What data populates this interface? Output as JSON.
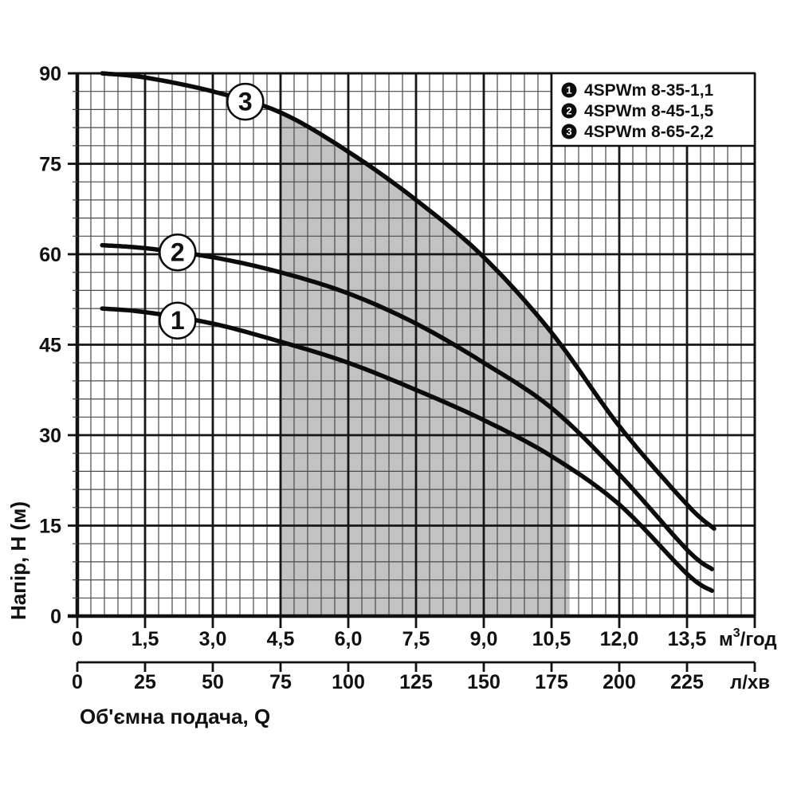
{
  "chart_data": {
    "type": "line",
    "title": "",
    "xlabel": "Об'ємна  подача, Q",
    "ylabel": "Напір, H (м)",
    "x_unit_primary": {
      "base": "м",
      "sup": "3",
      "rest": "/год"
    },
    "x_unit_secondary": "л/хв",
    "xlim": [
      0,
      15
    ],
    "ylim": [
      0,
      90
    ],
    "grid": "on",
    "x_minor_step": 0.3,
    "x_major_step": 1.5,
    "y_minor_step": 3,
    "y_major_step": 15,
    "x_ticks_primary": [
      {
        "value": 0,
        "label": "0"
      },
      {
        "value": 1.5,
        "label": "1,5"
      },
      {
        "value": 3,
        "label": "3,0"
      },
      {
        "value": 4.5,
        "label": "4,5"
      },
      {
        "value": 6,
        "label": "6,0"
      },
      {
        "value": 7.5,
        "label": "7,5"
      },
      {
        "value": 9,
        "label": "9,0"
      },
      {
        "value": 10.5,
        "label": "10,5"
      },
      {
        "value": 12,
        "label": "12,0"
      },
      {
        "value": 13.5,
        "label": "13,5"
      }
    ],
    "x_ticks_secondary": [
      {
        "value": 0,
        "label": "0"
      },
      {
        "value": 25,
        "label": "25"
      },
      {
        "value": 50,
        "label": "50"
      },
      {
        "value": 75,
        "label": "75"
      },
      {
        "value": 100,
        "label": "100"
      },
      {
        "value": 125,
        "label": "125"
      },
      {
        "value": 150,
        "label": "150"
      },
      {
        "value": 175,
        "label": "175"
      },
      {
        "value": 200,
        "label": "200"
      },
      {
        "value": 225,
        "label": "225"
      }
    ],
    "y_ticks": [
      {
        "value": 0,
        "label": "0"
      },
      {
        "value": 15,
        "label": "15"
      },
      {
        "value": 30,
        "label": "30"
      },
      {
        "value": 45,
        "label": "45"
      },
      {
        "value": 60,
        "label": "60"
      },
      {
        "value": 75,
        "label": "75"
      },
      {
        "value": 90,
        "label": "90"
      }
    ],
    "series": [
      {
        "name": "4SPWm 8-35-1,1",
        "marker": "1",
        "label_pos": [
          2.22,
          49.0
        ],
        "points": [
          [
            0.55,
            51
          ],
          [
            1.5,
            50.4
          ],
          [
            3,
            48.5
          ],
          [
            4.5,
            45.5
          ],
          [
            6,
            42
          ],
          [
            7.5,
            37.5
          ],
          [
            9,
            32.5
          ],
          [
            10.5,
            26.5
          ],
          [
            12,
            18.5
          ],
          [
            13.5,
            7
          ],
          [
            14.05,
            4.2
          ]
        ]
      },
      {
        "name": "4SPWm 8-45-1,5",
        "marker": "2",
        "label_pos": [
          2.22,
          60.3
        ],
        "points": [
          [
            0.55,
            61.5
          ],
          [
            1.5,
            61
          ],
          [
            3,
            59.5
          ],
          [
            4.5,
            57
          ],
          [
            6,
            53.5
          ],
          [
            7.5,
            48.5
          ],
          [
            9,
            42
          ],
          [
            10.5,
            34.5
          ],
          [
            12,
            23.5
          ],
          [
            13.5,
            11
          ],
          [
            14.05,
            7.8
          ]
        ]
      },
      {
        "name": "4SPWm 8-65-2,2",
        "marker": "3",
        "label_pos": [
          3.72,
          85.3
        ],
        "points": [
          [
            0.55,
            90
          ],
          [
            1.5,
            89.3
          ],
          [
            3,
            87
          ],
          [
            4.5,
            83.5
          ],
          [
            6,
            77
          ],
          [
            7.5,
            69
          ],
          [
            9,
            59.5
          ],
          [
            10.5,
            47
          ],
          [
            12,
            31.5
          ],
          [
            13.5,
            18.5
          ],
          [
            14.1,
            14.5
          ]
        ]
      }
    ],
    "operating_region": {
      "q_start": 4.5,
      "q_end": 10.9,
      "upper_bound_series_index": 2,
      "color": "#c2c2c2"
    },
    "legend_position": "top-right",
    "colors": {
      "curve": "#0b0b0b",
      "grid_minor": "#4a4a4a",
      "grid_major": "#161616",
      "border": "#111111",
      "region": "#c2c2c2",
      "background": "#ffffff"
    }
  }
}
